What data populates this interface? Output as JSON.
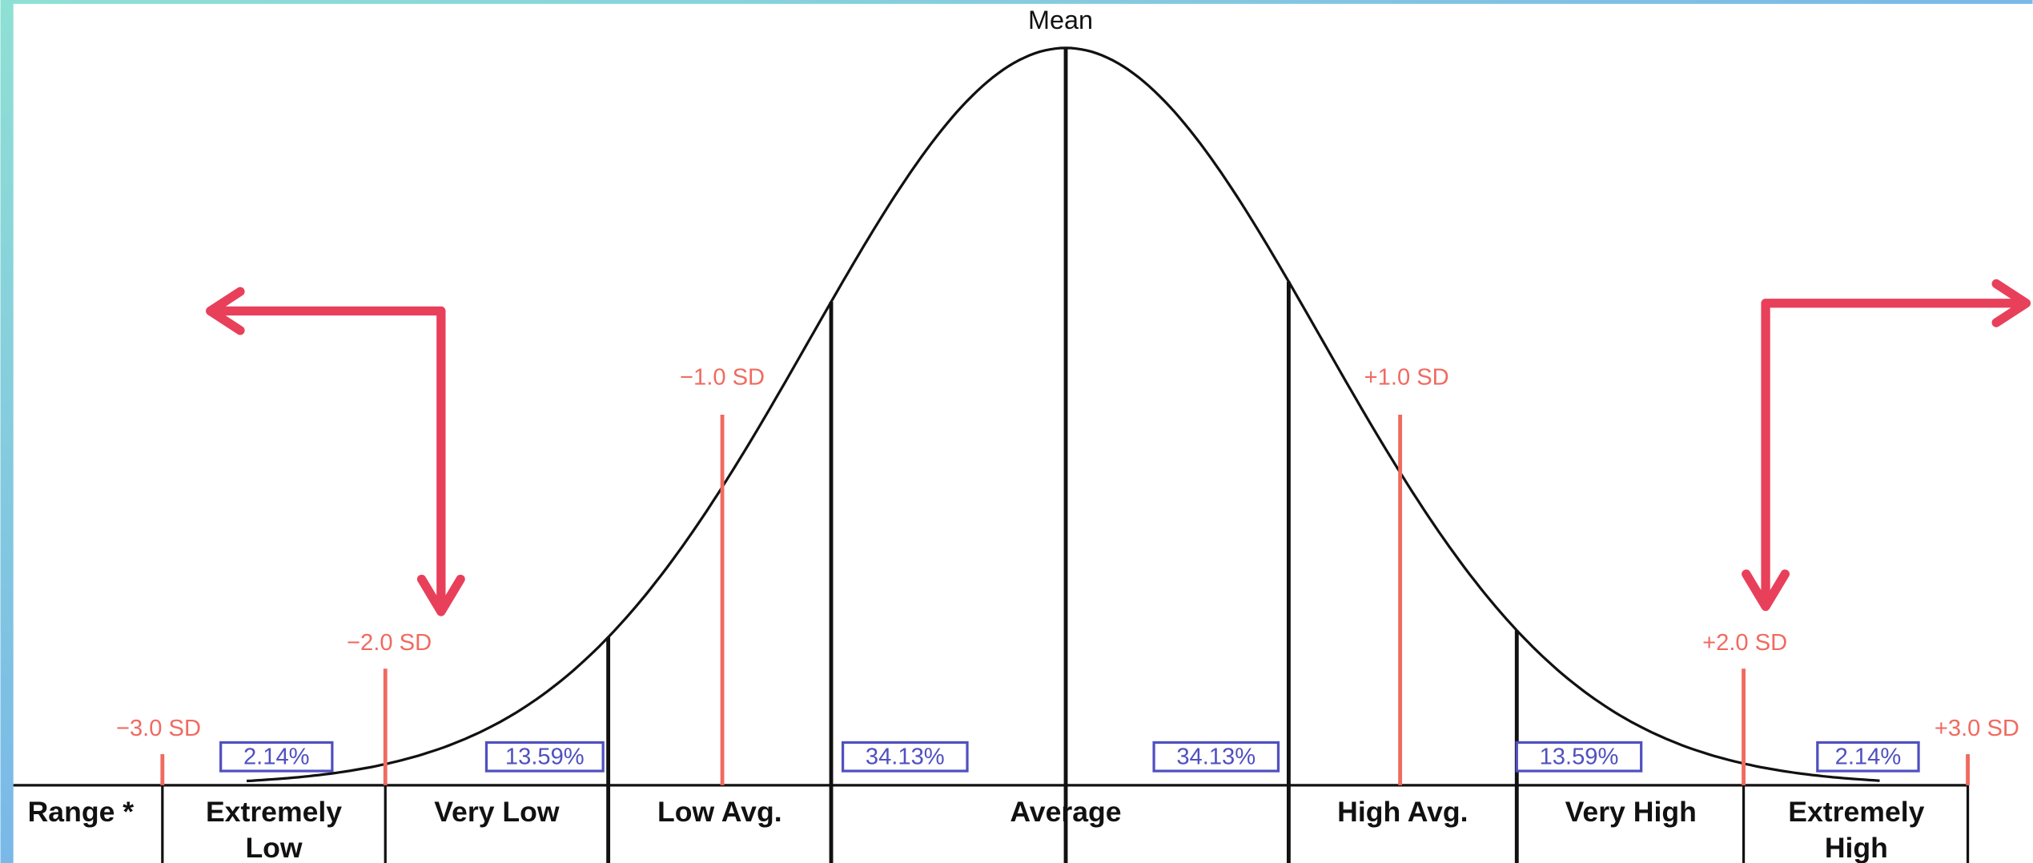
{
  "header": {
    "title": "Mean"
  },
  "sd_labels": [
    "−3.0 SD",
    "−2.0 SD",
    "−1.0 SD",
    "+1.0 SD",
    "+2.0 SD",
    "+3.0 SD"
  ],
  "percentages": [
    "2.14%",
    "13.59%",
    "34.13%",
    "34.13%",
    "13.59%",
    "2.14%"
  ],
  "ranges": [
    [
      "Range *"
    ],
    [
      "Extremely",
      "Low"
    ],
    [
      "Very Low"
    ],
    [
      "Low Avg."
    ],
    [
      "Average"
    ],
    [
      "High Avg."
    ],
    [
      "Very High"
    ],
    [
      "Extremely",
      "High"
    ]
  ]
}
